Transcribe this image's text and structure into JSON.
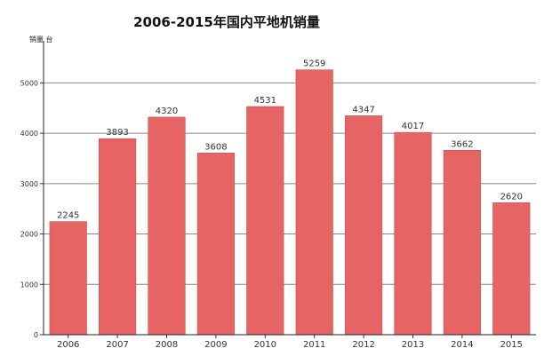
{
  "chart_data": {
    "type": "bar",
    "title": "2006-2015年国内平地机销量",
    "xlabel": "",
    "ylabel": "销量 台",
    "categories": [
      "2006",
      "2007",
      "2008",
      "2009",
      "2010",
      "2011",
      "2012",
      "2013",
      "2014",
      "2015"
    ],
    "values": [
      2245,
      3893,
      4320,
      3608,
      4531,
      5259,
      4347,
      4017,
      3662,
      2620
    ],
    "ylim": [
      0,
      5800
    ],
    "yticks": [
      0,
      1000,
      2000,
      3000,
      4000,
      5000
    ],
    "grid": true,
    "legend": "none",
    "bar_color": "#e66464",
    "bar_edge_color": "#c94f4f"
  }
}
